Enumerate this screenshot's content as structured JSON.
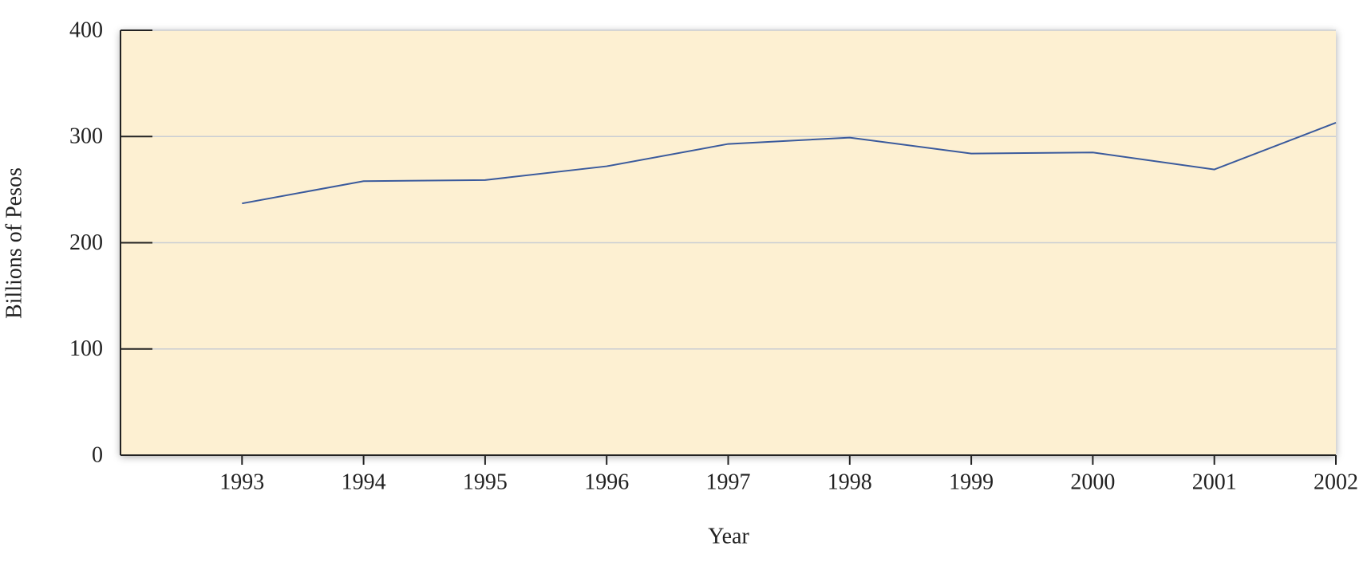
{
  "chart_data": {
    "type": "line",
    "x_label": "Year",
    "y_label": "Billions of Pesos",
    "x": [
      1993,
      1994,
      1995,
      1996,
      1997,
      1998,
      1999,
      2000,
      2001,
      2002
    ],
    "series": [
      {
        "name": "Billions of Pesos",
        "color": "#3a5a9c",
        "values": [
          237,
          258,
          259,
          272,
          293,
          299,
          284,
          285,
          269,
          313
        ]
      }
    ],
    "xlim": [
      1992,
      2002
    ],
    "xticks": [
      1993,
      1994,
      1995,
      1996,
      1997,
      1998,
      1999,
      2000,
      2001,
      2002
    ],
    "ylim": [
      0,
      400
    ],
    "yticks": [
      0,
      100,
      200,
      300,
      400
    ],
    "grid": true,
    "background": "#fdf0d2"
  }
}
